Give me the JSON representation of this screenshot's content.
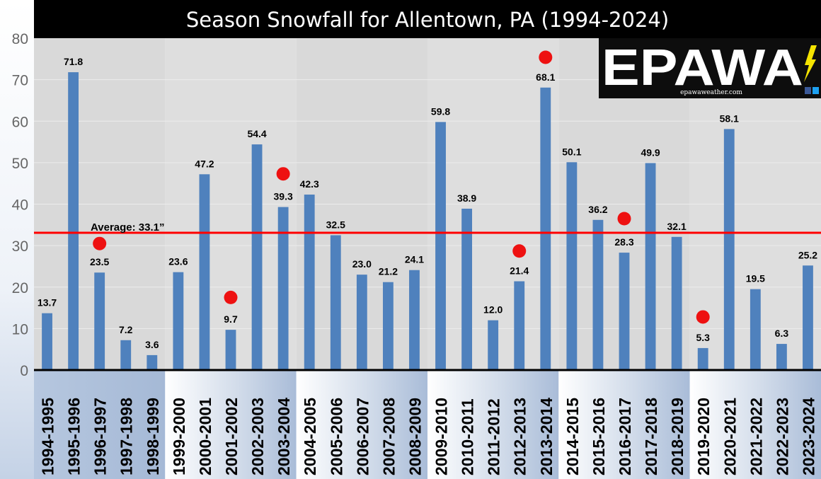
{
  "chart_data": {
    "type": "bar",
    "title": "Season Snowfall for Allentown, PA (1994-2024)",
    "xlabel": "",
    "ylabel": "",
    "ylim": [
      0,
      80
    ],
    "yticks": [
      0,
      10,
      20,
      30,
      40,
      50,
      60,
      70,
      80
    ],
    "grid": true,
    "categories": [
      "1994-1995",
      "1995-1996",
      "1996-1997",
      "1997-1998",
      "1998-1999",
      "1999-2000",
      "2000-2001",
      "2001-2002",
      "2002-2003",
      "2003-2004",
      "2004-2005",
      "2005-2006",
      "2006-2007",
      "2007-2008",
      "2008-2009",
      "2009-2010",
      "2010-2011",
      "2011-2012",
      "2012-2013",
      "2013-2014",
      "2014-2015",
      "2015-2016",
      "2016-2017",
      "2017-2018",
      "2018-2019",
      "2019-2020",
      "2020-2021",
      "2021-2022",
      "2022-2023",
      "2023-2024"
    ],
    "values": [
      13.7,
      71.8,
      23.5,
      7.2,
      3.6,
      23.6,
      47.2,
      9.7,
      54.4,
      39.3,
      42.3,
      32.5,
      23.0,
      21.2,
      24.1,
      59.8,
      38.9,
      12.0,
      21.4,
      68.1,
      50.1,
      36.2,
      28.3,
      49.9,
      32.1,
      5.3,
      58.1,
      19.5,
      6.3,
      25.2
    ],
    "value_labels": [
      "13.7",
      "71.8",
      "23.5",
      "7.2",
      "3.6",
      "23.6",
      "47.2",
      "9.7",
      "54.4",
      "39.3",
      "42.3",
      "32.5",
      "23.0",
      "21.2",
      "24.1",
      "59.8",
      "38.9",
      "12.0",
      "21.4",
      "68.1",
      "50.1",
      "36.2",
      "28.3",
      "49.9",
      "32.1",
      "5.3",
      "58.1",
      "19.5",
      "6.3",
      "25.2"
    ],
    "average": {
      "value": 33.1,
      "label": "Average: 33.1”",
      "color": "#ff0000"
    },
    "markers": [
      {
        "category": "1996-1997",
        "y": 30.5
      },
      {
        "category": "2001-2002",
        "y": 17.5
      },
      {
        "category": "2003-2004",
        "y": 47.3
      },
      {
        "category": "2012-2013",
        "y": 28.7
      },
      {
        "category": "2013-2014",
        "y": 75.4
      },
      {
        "category": "2016-2017",
        "y": 36.5
      },
      {
        "category": "2019-2020",
        "y": 12.8
      }
    ],
    "colors": {
      "bar": "#4f81bd",
      "marker": "#ee1111",
      "title_bg": "#000000",
      "title_text": "#ffffff",
      "plot_bg": "#d9d9d9"
    }
  },
  "logo": {
    "text": "EPAWA",
    "site": "epawaweather.com"
  }
}
